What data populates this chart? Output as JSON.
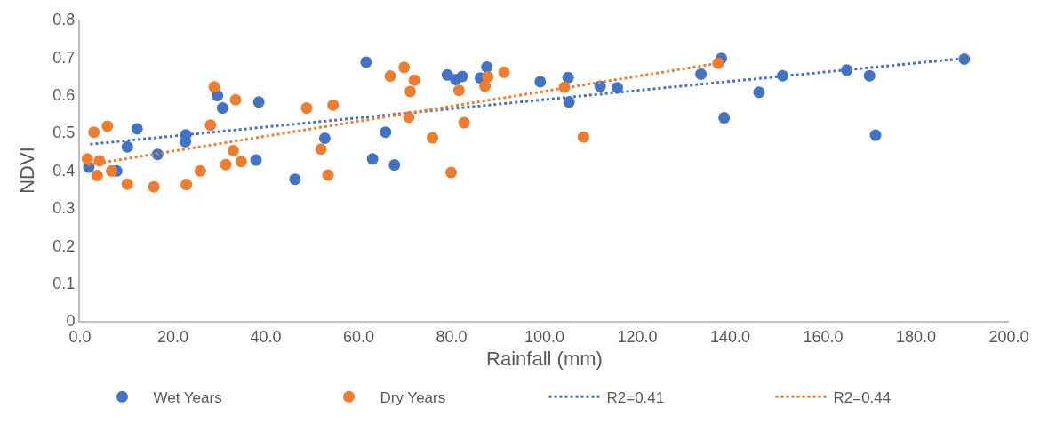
{
  "chart_data": {
    "type": "scatter",
    "xlabel": "Rainfall (mm)",
    "ylabel": "NDVI",
    "xlim": [
      0,
      200
    ],
    "xticks": [
      {
        "value": 0,
        "label": "0.0"
      },
      {
        "value": 20,
        "label": "20.0"
      },
      {
        "value": 40,
        "label": "40.0"
      },
      {
        "value": 60,
        "label": "60.0"
      },
      {
        "value": 80,
        "label": "80.0"
      },
      {
        "value": 100,
        "label": "100.0"
      },
      {
        "value": 120,
        "label": "120.0"
      },
      {
        "value": 140,
        "label": "140.0"
      },
      {
        "value": 160,
        "label": "160.0"
      },
      {
        "value": 180,
        "label": "180.0"
      },
      {
        "value": 200,
        "label": "200.0"
      }
    ],
    "ylim": [
      0,
      0.8
    ],
    "yticks": [
      0,
      0.1,
      0.2,
      0.3,
      0.4,
      0.5,
      0.6,
      0.7,
      0.8
    ],
    "grid": false,
    "legend": "bottom",
    "marker": "circle",
    "series": [
      {
        "name": "Wet Years",
        "color": "#4472c4",
        "x": [
          1.9,
          7.9,
          10.2,
          12.3,
          16.7,
          22.8,
          22.7,
          29.6,
          30.7,
          38.5,
          37.9,
          46.3,
          52.7,
          61.6,
          65.8,
          63.0,
          67.7,
          79.1,
          80.9,
          82.3,
          86.2,
          87.6,
          99.1,
          105.1,
          105.3,
          112.0,
          115.7,
          133.7,
          138.1,
          138.7,
          146.2,
          151.3,
          165.1,
          170.0,
          171.3,
          190.4
        ],
        "values": [
          0.408,
          0.398,
          0.462,
          0.51,
          0.442,
          0.494,
          0.476,
          0.598,
          0.565,
          0.581,
          0.427,
          0.376,
          0.485,
          0.687,
          0.501,
          0.43,
          0.414,
          0.653,
          0.641,
          0.649,
          0.645,
          0.674,
          0.635,
          0.646,
          0.581,
          0.623,
          0.619,
          0.655,
          0.697,
          0.539,
          0.607,
          0.651,
          0.666,
          0.651,
          0.493,
          0.695
        ]
      },
      {
        "name": "Dry Years",
        "color": "#ed7d31",
        "x": [
          3.0,
          5.9,
          1.6,
          4.2,
          3.7,
          6.8,
          10.2,
          15.9,
          22.9,
          25.9,
          28.1,
          28.9,
          33.5,
          31.4,
          33.0,
          34.7,
          48.8,
          54.5,
          51.9,
          53.4,
          66.8,
          69.8,
          72.0,
          71.1,
          70.8,
          75.9,
          79.9,
          81.6,
          82.7,
          87.8,
          87.2,
          91.3,
          104.3,
          108.4,
          137.4
        ],
        "values": [
          0.501,
          0.517,
          0.43,
          0.425,
          0.386,
          0.398,
          0.363,
          0.356,
          0.362,
          0.398,
          0.52,
          0.621,
          0.587,
          0.415,
          0.452,
          0.423,
          0.565,
          0.573,
          0.456,
          0.387,
          0.65,
          0.673,
          0.639,
          0.609,
          0.541,
          0.486,
          0.394,
          0.612,
          0.526,
          0.648,
          0.623,
          0.66,
          0.62,
          0.488,
          0.684
        ]
      },
      {
        "name": "R2=0.41",
        "type": "line",
        "marker": "none",
        "line_style": "dotted",
        "color": "#4472c4",
        "x": [
          2.2,
          190.4
        ],
        "values": [
          0.469,
          0.697
        ]
      },
      {
        "name": "R2=0.44",
        "type": "line",
        "marker": "none",
        "line_style": "dotted",
        "color": "#ed7d31",
        "x": [
          1.6,
          137.4
        ],
        "values": [
          0.414,
          0.684
        ]
      }
    ]
  }
}
